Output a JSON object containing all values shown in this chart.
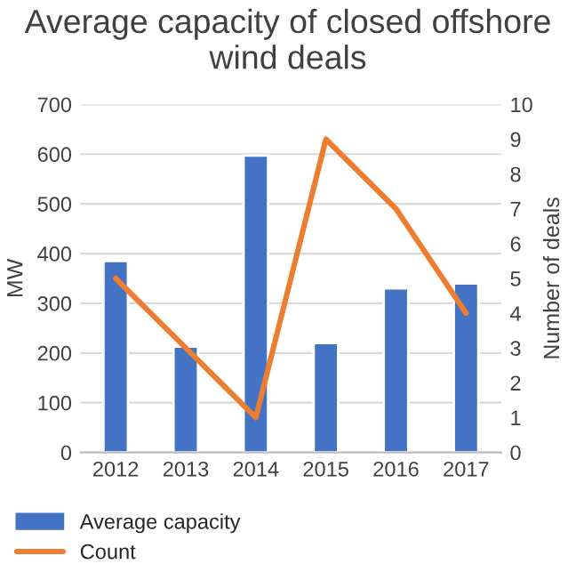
{
  "chart_data": {
    "type": "bar",
    "title": "Average capacity of closed offshore wind deals",
    "categories": [
      "2012",
      "2013",
      "2014",
      "2015",
      "2016",
      "2017"
    ],
    "series": [
      {
        "name": "Average capacity",
        "color": "#4472c4",
        "values": [
          385,
          213,
          597,
          220,
          330,
          340
        ]
      },
      {
        "name": "Count",
        "type": "line",
        "axis": "y2",
        "color": "#ed7d31",
        "values": [
          5,
          3,
          1,
          9,
          7,
          4
        ]
      }
    ],
    "ylabel": "MW",
    "y2label": "Number of deals",
    "ylim": [
      0,
      700
    ],
    "yticks": [
      0,
      100,
      200,
      300,
      400,
      500,
      600,
      700
    ],
    "y2lim": [
      0,
      10
    ],
    "y2ticks": [
      0,
      1,
      2,
      3,
      4,
      5,
      6,
      7,
      8,
      9,
      10
    ],
    "grid": "y",
    "legend": "bottom"
  }
}
